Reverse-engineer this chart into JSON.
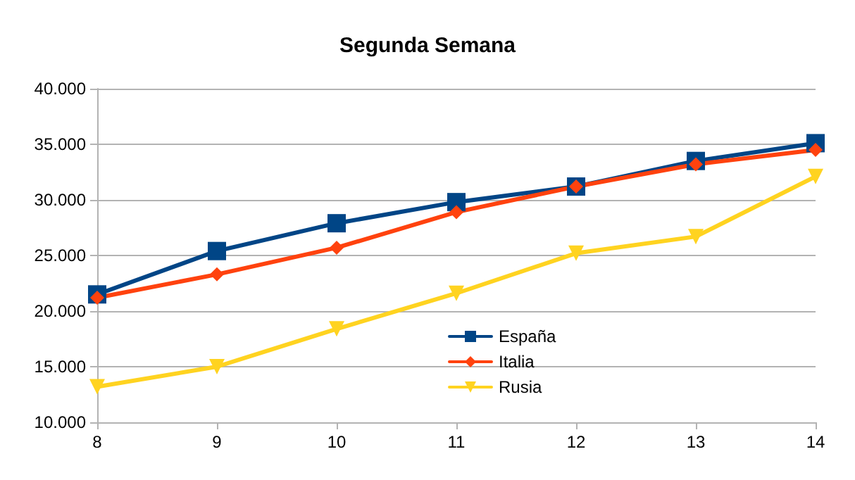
{
  "chart_data": {
    "type": "line",
    "title": "Segunda Semana",
    "x": [
      8,
      9,
      10,
      11,
      12,
      13,
      14
    ],
    "xlim": [
      8,
      14
    ],
    "xticks": [
      8,
      9,
      10,
      11,
      12,
      13,
      14
    ],
    "ylim": [
      10000,
      40000
    ],
    "yticks": [
      {
        "value": 10000,
        "label": "10.000"
      },
      {
        "value": 15000,
        "label": "15.000"
      },
      {
        "value": 20000,
        "label": "20.000"
      },
      {
        "value": 25000,
        "label": "25.000"
      },
      {
        "value": 30000,
        "label": "30.000"
      },
      {
        "value": 35000,
        "label": "35.000"
      },
      {
        "value": 40000,
        "label": "40.000"
      }
    ],
    "series": [
      {
        "name": "España",
        "color": "#004586",
        "marker": "square",
        "values": [
          21500,
          25400,
          27900,
          29800,
          31200,
          33500,
          35100
        ]
      },
      {
        "name": "Italia",
        "color": "#ff420e",
        "marker": "diamond",
        "values": [
          21200,
          23300,
          25700,
          28900,
          31200,
          33200,
          34500
        ]
      },
      {
        "name": "Rusia",
        "color": "#ffd320",
        "marker": "triangle",
        "values": [
          13200,
          15000,
          18400,
          21600,
          25200,
          26700,
          32100
        ]
      }
    ],
    "grid": "y",
    "legend": "bottom",
    "line_style": "solid"
  }
}
